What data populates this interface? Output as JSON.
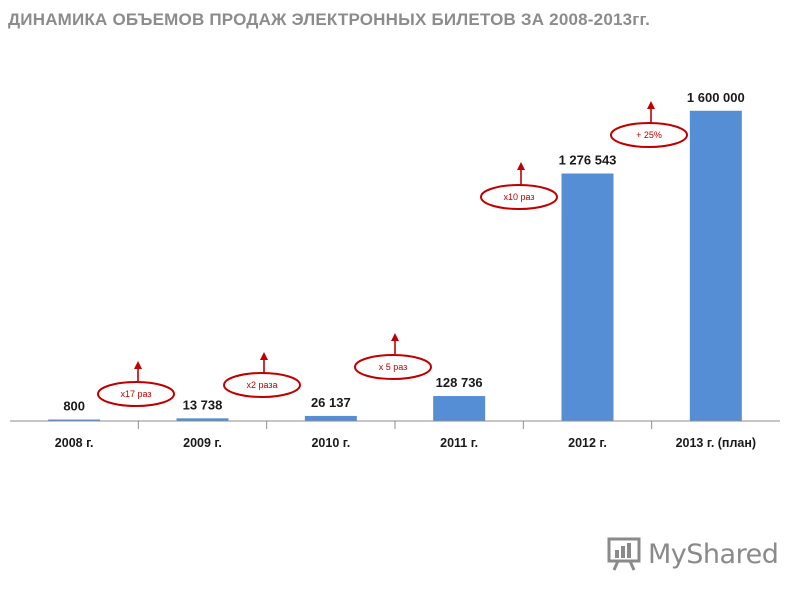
{
  "title": "ДИНАМИКА ОБЪЕМОВ ПРОДАЖ ЭЛЕКТРОННЫХ БИЛЕТОВ ЗА 2008-2013гг.",
  "colors": {
    "bar": "#558ed5",
    "accent": "#c00000",
    "axis": "#8c8c8c"
  },
  "chart_data": {
    "type": "bar",
    "title": "ДИНАМИКА ОБЪЕМОВ ПРОДАЖ ЭЛЕКТРОННЫХ БИЛЕТОВ ЗА 2008-2013гг.",
    "xlabel": "",
    "ylabel": "",
    "categories": [
      "2008 г.",
      "2009 г.",
      "2010 г.",
      "2011 г.",
      "2012 г.",
      "2013 г. (план)"
    ],
    "values": [
      800,
      13738,
      26137,
      128736,
      1276543,
      1600000
    ],
    "value_labels": [
      "800",
      "13 738",
      "26 137",
      "128 736",
      "1 276 543",
      "1 600 000"
    ],
    "ylim": [
      0,
      1800000
    ],
    "grid": false,
    "legend": "none",
    "annotations": [
      {
        "text": "x17 раз",
        "between": [
          "2008 г.",
          "2009 г."
        ]
      },
      {
        "text": "x2 раза",
        "between": [
          "2009 г.",
          "2010 г."
        ]
      },
      {
        "text": "x 5 раз",
        "between": [
          "2010 г.",
          "2011 г."
        ]
      },
      {
        "text": "x10 раз",
        "between": [
          "2011 г.",
          "2012 г."
        ]
      },
      {
        "text": "+ 25%",
        "between": [
          "2012 г.",
          "2013 г. (план)"
        ]
      }
    ]
  },
  "watermark": {
    "text": "MyShared",
    "icon": "presentation-board-icon"
  }
}
